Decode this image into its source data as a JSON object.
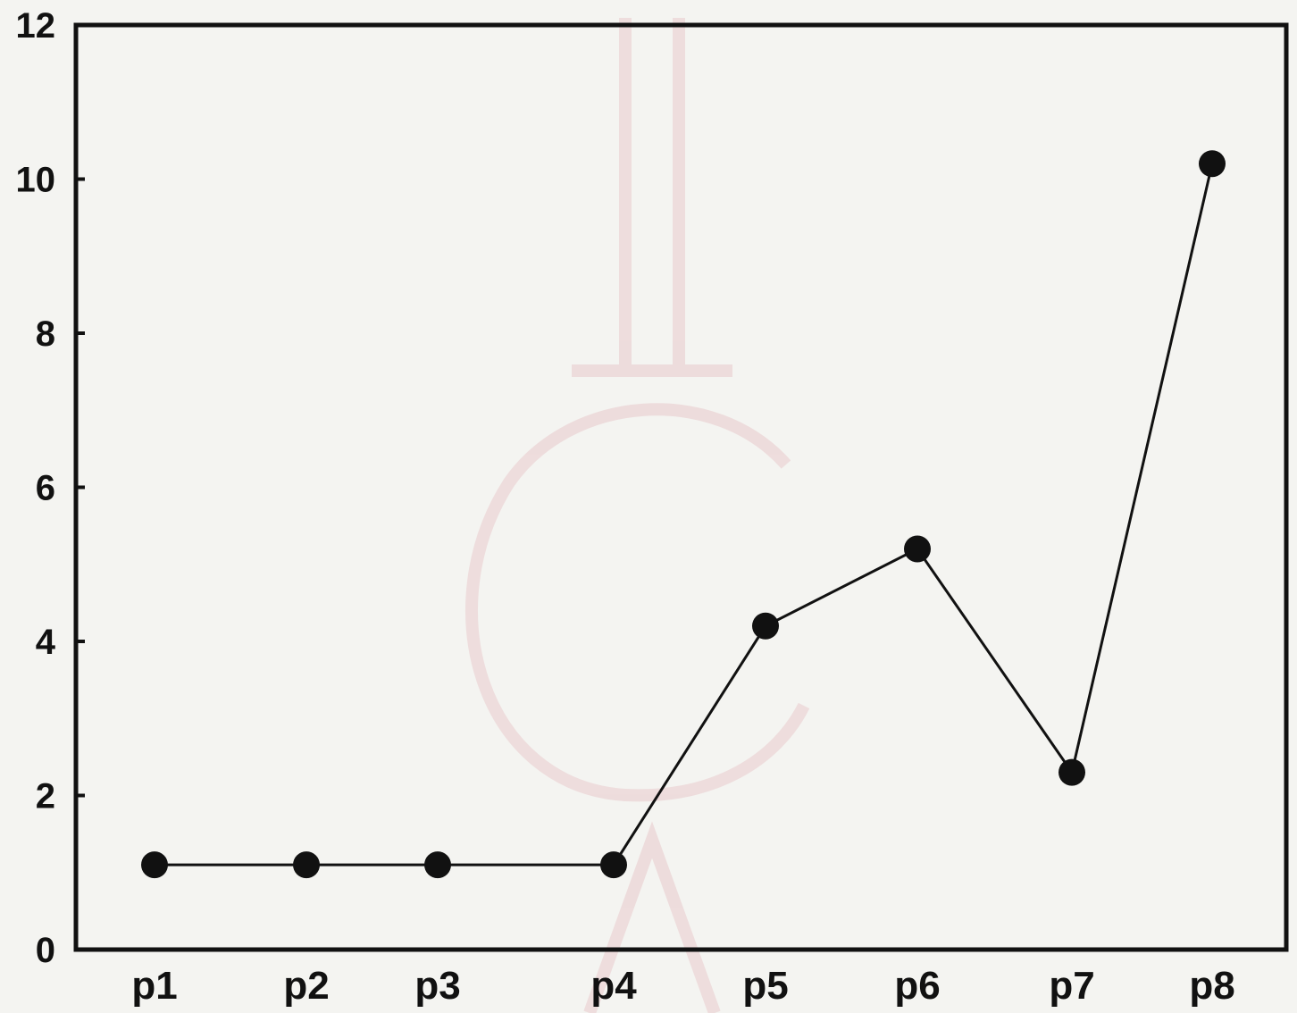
{
  "chart_data": {
    "type": "line",
    "title": "",
    "xlabel": "",
    "ylabel": "",
    "categories": [
      "p1",
      "p2",
      "p3",
      "p4",
      "p5",
      "p6",
      "p7",
      "p8"
    ],
    "series": [
      {
        "values": [
          1.1,
          1.1,
          1.1,
          1.1,
          4.2,
          5.2,
          2.3,
          10.2
        ]
      }
    ],
    "ylim": [
      0,
      12
    ],
    "yticks": [
      "0",
      "2",
      "4",
      "6",
      "8",
      "10",
      "12"
    ],
    "grid": false,
    "legend": "none",
    "line_color": "#111111",
    "marker_color": "#111111",
    "watermark_color": "#eddada"
  }
}
